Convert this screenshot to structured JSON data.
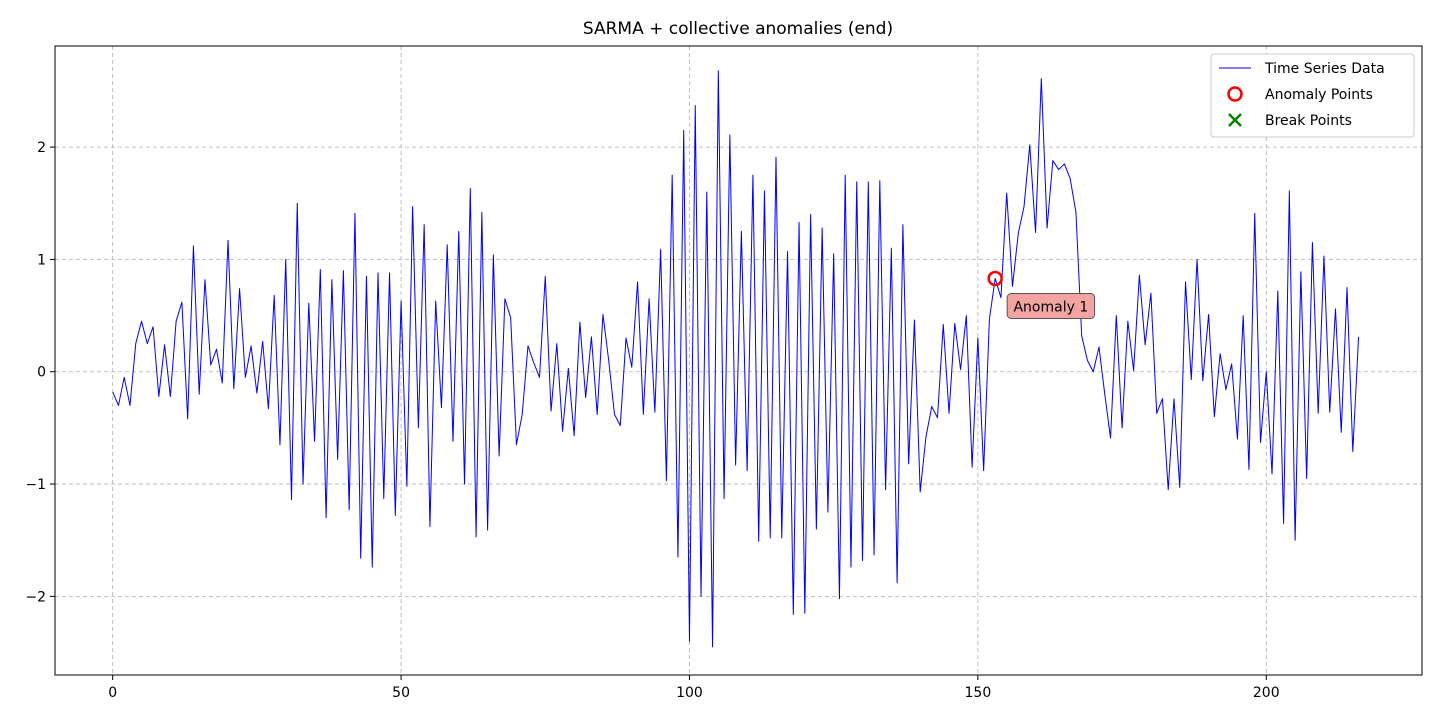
{
  "chart_data": {
    "type": "line",
    "title": "SARMA + collective anomalies (end)",
    "xlabel": "",
    "ylabel": "",
    "xlim": [
      -10,
      227
    ],
    "ylim": [
      -2.7,
      2.9
    ],
    "xticks": [
      0,
      50,
      100,
      150,
      200
    ],
    "yticks": [
      -2,
      -1,
      0,
      1,
      2
    ],
    "xtick_labels": [
      "0",
      "50",
      "100",
      "150",
      "200"
    ],
    "ytick_labels": [
      "−2",
      "−1",
      "0",
      "1",
      "2"
    ],
    "grid": true,
    "legend_position": "top-right",
    "legend": [
      {
        "label": "Time Series Data",
        "marker": "line",
        "color": "#0000ff"
      },
      {
        "label": "Anomaly Points",
        "marker": "circle",
        "color": "#ff0000"
      },
      {
        "label": "Break Points",
        "marker": "x",
        "color": "#008000"
      }
    ],
    "series": [
      {
        "name": "Time Series Data",
        "color": "#0000ff",
        "x_start": 0,
        "values": [
          -0.18,
          -0.3,
          -0.05,
          -0.3,
          0.25,
          0.45,
          0.25,
          0.4,
          -0.22,
          0.24,
          -0.22,
          0.45,
          0.62,
          -0.42,
          1.12,
          -0.2,
          0.82,
          0.06,
          0.2,
          -0.1,
          1.17,
          -0.15,
          0.74,
          -0.05,
          0.23,
          -0.19,
          0.27,
          -0.33,
          0.68,
          -0.65,
          1.0,
          -1.14,
          1.5,
          -1.0,
          0.61,
          -0.62,
          0.91,
          -1.3,
          0.82,
          -0.78,
          0.9,
          -1.23,
          1.41,
          -1.66,
          0.85,
          -1.74,
          0.88,
          -1.13,
          0.88,
          -1.28,
          0.63,
          -1.02,
          1.47,
          -0.5,
          1.31,
          -1.38,
          0.63,
          -0.32,
          1.13,
          -0.62,
          1.25,
          -1.0,
          1.63,
          -1.47,
          1.42,
          -1.41,
          1.04,
          -0.75,
          0.65,
          0.48,
          -0.65,
          -0.38,
          0.23,
          0.08,
          -0.05,
          0.85,
          -0.35,
          0.25,
          -0.53,
          0.03,
          -0.57,
          0.44,
          -0.23,
          0.31,
          -0.38,
          0.51,
          0.1,
          -0.38,
          -0.48,
          0.3,
          0.04,
          0.8,
          -0.38,
          0.65,
          -0.36,
          1.09,
          -0.97,
          1.75,
          -1.65,
          2.15,
          -2.4,
          2.37,
          -2.0,
          1.6,
          -2.45,
          2.68,
          -1.13,
          2.11,
          -0.83,
          1.25,
          -0.88,
          1.75,
          -1.51,
          1.61,
          -1.48,
          1.91,
          -1.48,
          1.07,
          -2.16,
          1.33,
          -2.15,
          1.4,
          -1.4,
          1.28,
          -1.25,
          1.05,
          -2.02,
          1.75,
          -1.74,
          1.69,
          -1.68,
          1.69,
          -1.63,
          1.7,
          -1.05,
          1.1,
          -1.88,
          1.31,
          -0.82,
          0.46,
          -1.07,
          -0.58,
          -0.31,
          -0.41,
          0.42,
          -0.37,
          0.43,
          0.02,
          0.5,
          -0.85,
          0.3,
          -0.88,
          0.47,
          0.83,
          0.66,
          1.59,
          0.76,
          1.23,
          1.47,
          2.02,
          1.24,
          2.61,
          1.28,
          1.88,
          1.8,
          1.85,
          1.72,
          1.42,
          0.32,
          0.1,
          0.0,
          0.22,
          -0.2,
          -0.59,
          0.5,
          -0.5,
          0.45,
          0.01,
          0.86,
          0.24,
          0.7,
          -0.37,
          -0.24,
          -1.05,
          -0.24,
          -1.03,
          0.8,
          -0.07,
          1.0,
          -0.08,
          0.51,
          -0.4,
          0.16,
          -0.16,
          0.07,
          -0.6,
          0.5,
          -0.87,
          1.41,
          -0.63,
          0.0,
          -0.91,
          0.72,
          -1.35,
          1.61,
          -1.5,
          0.89,
          -0.95,
          1.15,
          -0.37,
          1.03,
          -0.36,
          0.56,
          -0.54,
          0.75,
          -0.71,
          0.31
        ]
      }
    ],
    "anomaly_points": [
      {
        "x": 153,
        "y": 0.83
      }
    ],
    "break_points": [],
    "annotations": [
      {
        "text": "Anomaly 1",
        "x": 153,
        "y": 0.83
      }
    ]
  }
}
